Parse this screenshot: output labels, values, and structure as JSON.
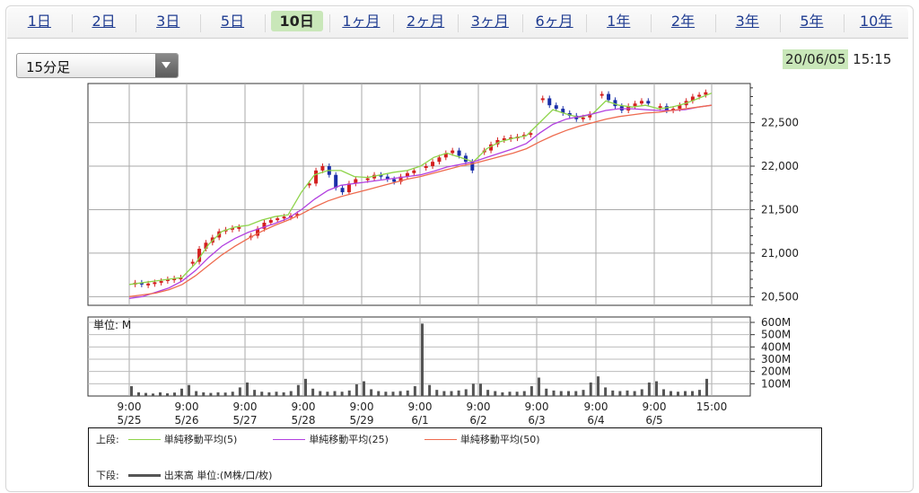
{
  "tabs": [
    {
      "label": "1日",
      "active": false
    },
    {
      "label": "2日",
      "active": false
    },
    {
      "label": "3日",
      "active": false
    },
    {
      "label": "5日",
      "active": false
    },
    {
      "label": "10日",
      "active": true
    },
    {
      "label": "1ヶ月",
      "active": false
    },
    {
      "label": "2ヶ月",
      "active": false
    },
    {
      "label": "3ヶ月",
      "active": false
    },
    {
      "label": "6ヶ月",
      "active": false
    },
    {
      "label": "1年",
      "active": false
    },
    {
      "label": "2年",
      "active": false
    },
    {
      "label": "3年",
      "active": false
    },
    {
      "label": "5年",
      "active": false
    },
    {
      "label": "10年",
      "active": false
    }
  ],
  "interval_select": {
    "value": "15分足"
  },
  "datetime": {
    "date": "20/06/05",
    "time": "15:15"
  },
  "colors": {
    "accent": "#c9e7b9",
    "sma5": "#8ed44a",
    "sma25": "#b240e0",
    "sma50": "#ee6b4f",
    "volume": "#555555",
    "up": "#d42020",
    "down": "#1a2fa8"
  },
  "icons": {
    "dropdown": "triangle-down-icon"
  },
  "legend": {
    "upper_label": "上段:",
    "lower_label": "下段:",
    "sma5_label": "単純移動平均(5)",
    "sma25_label": "単純移動平均(25)",
    "sma50_label": "単純移動平均(50)",
    "volume_label": "出来高 単位:(M株/口/枚)"
  },
  "chart_data": [
    {
      "type": "line",
      "grid": true,
      "ylim": [
        20400,
        22950
      ],
      "y_ticks": [
        "20,500",
        "21,000",
        "21,500",
        "22,000",
        "22,500"
      ],
      "x_tick_labels": [
        {
          "time": "9:00",
          "date": "5/25"
        },
        {
          "time": "9:00",
          "date": "5/26"
        },
        {
          "time": "9:00",
          "date": "5/27"
        },
        {
          "time": "9:00",
          "date": "5/28"
        },
        {
          "time": "9:00",
          "date": "5/29"
        },
        {
          "time": "9:00",
          "date": "6/1"
        },
        {
          "time": "9:00",
          "date": "6/2"
        },
        {
          "time": "9:00",
          "date": "6/3"
        },
        {
          "time": "9:00",
          "date": "6/4"
        },
        {
          "time": "9:00",
          "date": "6/5"
        },
        {
          "time": "15:00",
          "date": ""
        }
      ],
      "price_daily": [
        {
          "day": "5/25",
          "values": [
            20660,
            20640,
            20650,
            20665,
            20680,
            20700,
            20710,
            20720
          ]
        },
        {
          "day": "5/26",
          "values": [
            20900,
            21050,
            21120,
            21180,
            21250,
            21270,
            21290,
            21300
          ]
        },
        {
          "day": "5/27",
          "values": [
            21200,
            21280,
            21350,
            21380,
            21400,
            21420,
            21430,
            21450
          ]
        },
        {
          "day": "5/28",
          "values": [
            21800,
            21950,
            22000,
            21900,
            21750,
            21700,
            21800,
            21850
          ]
        },
        {
          "day": "5/29",
          "values": [
            21860,
            21900,
            21880,
            21850,
            21820,
            21880,
            21920,
            21950
          ]
        },
        {
          "day": "6/1",
          "values": [
            22000,
            22050,
            22100,
            22150,
            22180,
            22120,
            22050,
            21950
          ]
        },
        {
          "day": "6/2",
          "values": [
            22180,
            22250,
            22300,
            22320,
            22330,
            22340,
            22360,
            22380
          ]
        },
        {
          "day": "6/3",
          "values": [
            22780,
            22700,
            22660,
            22610,
            22580,
            22540,
            22560,
            22600
          ]
        },
        {
          "day": "6/4",
          "values": [
            22830,
            22760,
            22690,
            22640,
            22690,
            22720,
            22750,
            22720
          ]
        },
        {
          "day": "6/5",
          "values": [
            22690,
            22640,
            22660,
            22700,
            22750,
            22800,
            22820,
            22850
          ]
        }
      ],
      "series": [
        {
          "name": "単純移動平均(5)",
          "values": [
            20640,
            20660,
            20680,
            20700,
            20720,
            20880,
            21100,
            21250,
            21300,
            21320,
            21380,
            21420,
            21440,
            21700,
            21900,
            21950,
            21950,
            21880,
            21870,
            21900,
            21930,
            21950,
            22000,
            22100,
            22150,
            22100,
            22050,
            22200,
            22280,
            22320,
            22350,
            22500,
            22650,
            22600,
            22560,
            22600,
            22750,
            22700,
            22680,
            22700,
            22660,
            22680,
            22720,
            22780,
            22840
          ]
        },
        {
          "name": "単純移動平均(25)",
          "values": [
            20480,
            20500,
            20550,
            20600,
            20680,
            20800,
            20950,
            21080,
            21170,
            21240,
            21290,
            21340,
            21400,
            21500,
            21620,
            21720,
            21780,
            21800,
            21820,
            21840,
            21860,
            21880,
            21900,
            21940,
            21990,
            22020,
            22050,
            22100,
            22150,
            22200,
            22260,
            22380,
            22480,
            22540,
            22570,
            22600,
            22640,
            22660,
            22660,
            22650,
            22640,
            22640,
            22650,
            22680,
            22700
          ]
        },
        {
          "name": "単純移動平均(50)",
          "values": [
            20500,
            20520,
            20540,
            20580,
            20640,
            20740,
            20860,
            20980,
            21080,
            21170,
            21250,
            21320,
            21380,
            21450,
            21530,
            21600,
            21650,
            21690,
            21730,
            21770,
            21810,
            21850,
            21880,
            21920,
            21960,
            22000,
            22030,
            22070,
            22110,
            22150,
            22200,
            22280,
            22350,
            22410,
            22460,
            22500,
            22540,
            22570,
            22590,
            22610,
            22620,
            22640,
            22660,
            22680,
            22700
          ]
        }
      ]
    },
    {
      "type": "bar",
      "ylabel": "単位: M",
      "y_ticks": [
        "600M",
        "500M",
        "400M",
        "300M",
        "200M",
        "100M"
      ],
      "ylim": [
        0,
        600
      ],
      "volume_per_day": [
        {
          "day": "5/25",
          "values": [
            80,
            30,
            25,
            20,
            30,
            22,
            28,
            60
          ]
        },
        {
          "day": "5/26",
          "values": [
            90,
            40,
            30,
            25,
            30,
            28,
            35,
            70
          ]
        },
        {
          "day": "5/27",
          "values": [
            110,
            50,
            35,
            30,
            35,
            30,
            40,
            90
          ]
        },
        {
          "day": "5/28",
          "values": [
            140,
            60,
            40,
            35,
            40,
            35,
            45,
            95
          ]
        },
        {
          "day": "5/29",
          "values": [
            120,
            55,
            40,
            35,
            35,
            40,
            45,
            80
          ]
        },
        {
          "day": "6/1",
          "values": [
            590,
            90,
            50,
            40,
            40,
            45,
            55,
            100
          ]
        },
        {
          "day": "6/2",
          "values": [
            100,
            50,
            40,
            30,
            35,
            35,
            40,
            80
          ]
        },
        {
          "day": "6/3",
          "values": [
            150,
            60,
            45,
            40,
            40,
            40,
            50,
            110
          ]
        },
        {
          "day": "6/4",
          "values": [
            160,
            70,
            45,
            40,
            45,
            40,
            55,
            110
          ]
        },
        {
          "day": "6/5",
          "values": [
            120,
            55,
            40,
            35,
            40,
            40,
            50,
            140
          ]
        }
      ]
    }
  ]
}
